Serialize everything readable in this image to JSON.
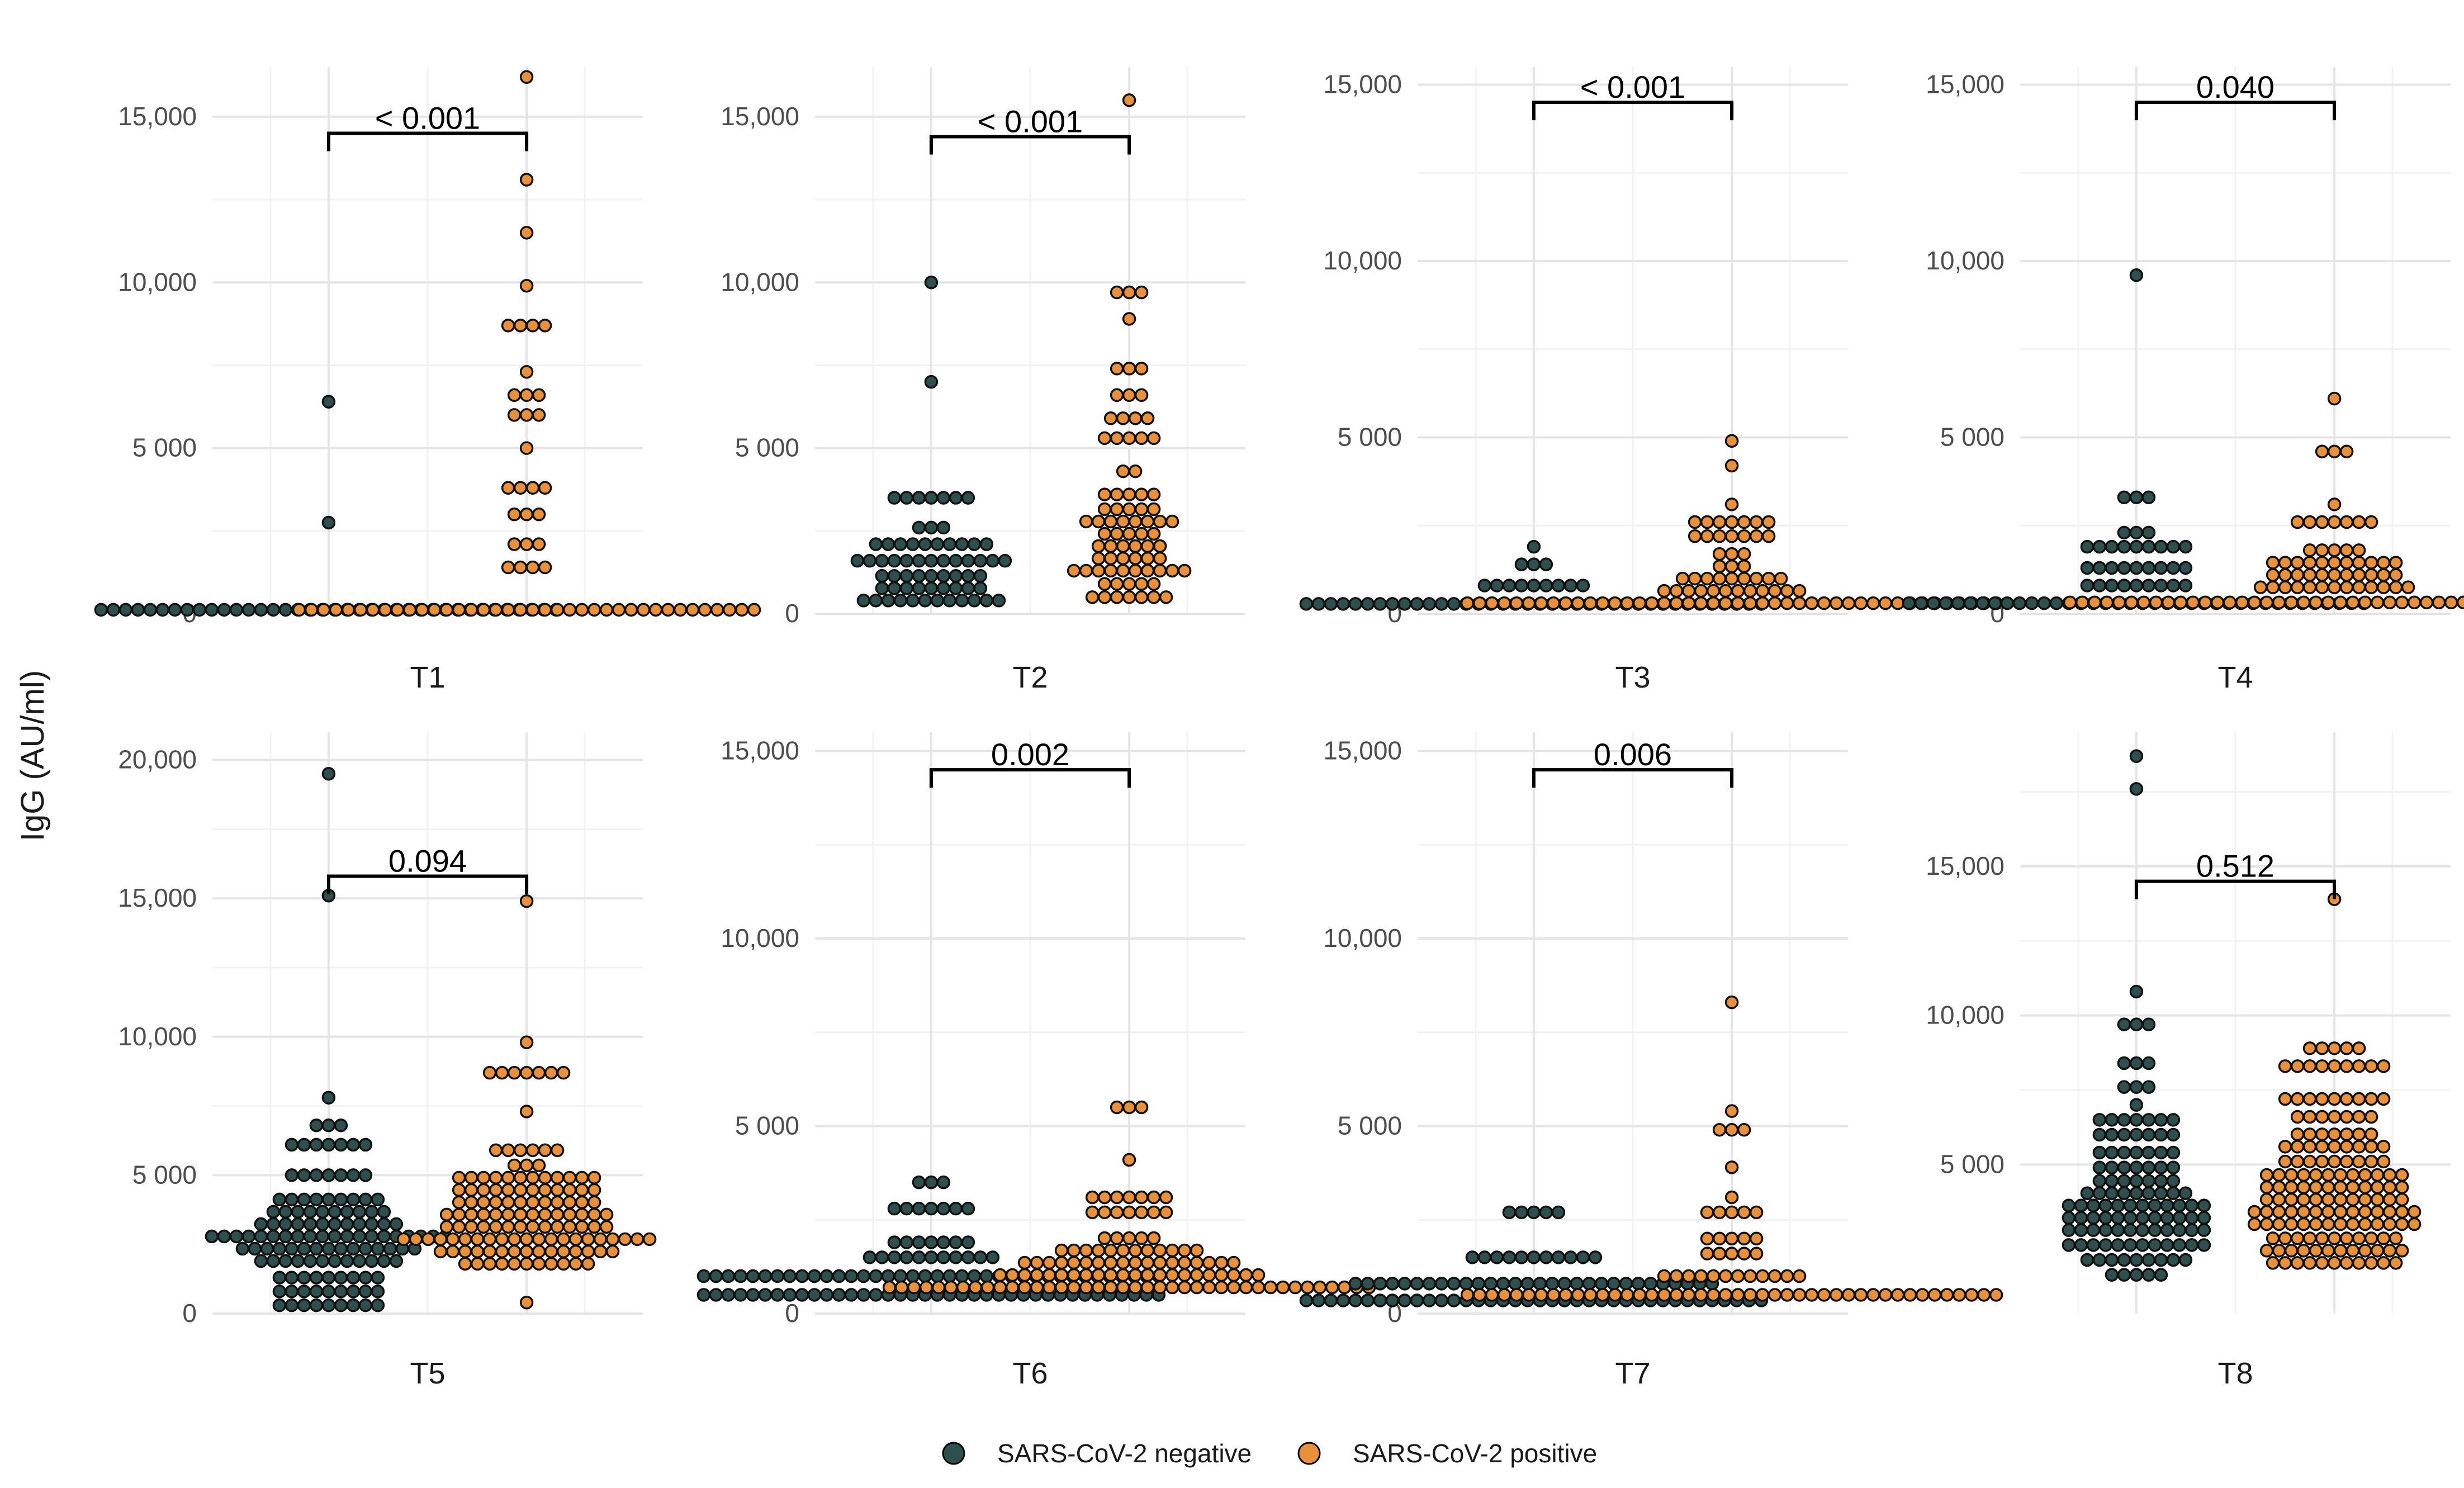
{
  "chart_data": {
    "type": "scatter",
    "subtype": "beeswarm dot plot, faceted",
    "ylabel": "IgG (AU/ml)",
    "legend": {
      "position": "bottom",
      "entries": [
        {
          "name": "SARS-CoV-2 negative",
          "color": "#2f4f4f"
        },
        {
          "name": "SARS-CoV-2 positive",
          "color": "#e8913a"
        }
      ]
    },
    "panels": [
      {
        "label": "T1",
        "ylim": [
          0,
          16500
        ],
        "ticks": [
          0,
          5000,
          10000,
          15000
        ],
        "tick_labels": [
          "0",
          "5 000",
          "10,000",
          "15,000"
        ],
        "p_value": "< 0.001",
        "bracket_y": 14500,
        "groups": [
          {
            "name": "SARS-CoV-2 negative",
            "levels": [
              [
                6400,
                1
              ],
              [
                2750,
                1
              ],
              [
                120,
                38
              ]
            ]
          },
          {
            "name": "SARS-CoV-2 positive",
            "levels": [
              [
                16200,
                1
              ],
              [
                13100,
                1
              ],
              [
                11500,
                1
              ],
              [
                9900,
                1
              ],
              [
                8700,
                4
              ],
              [
                7300,
                1
              ],
              [
                6600,
                3
              ],
              [
                6000,
                3
              ],
              [
                5000,
                1
              ],
              [
                3800,
                4
              ],
              [
                3000,
                3
              ],
              [
                2100,
                3
              ],
              [
                1400,
                4
              ],
              [
                120,
                38
              ]
            ]
          }
        ]
      },
      {
        "label": "T2",
        "ylim": [
          0,
          16500
        ],
        "ticks": [
          0,
          5000,
          10000,
          15000
        ],
        "tick_labels": [
          "0",
          "5 000",
          "10,000",
          "15,000"
        ],
        "p_value": "< 0.001",
        "bracket_y": 14400,
        "groups": [
          {
            "name": "SARS-CoV-2 negative",
            "levels": [
              [
                10000,
                1
              ],
              [
                7000,
                1
              ],
              [
                3500,
                7
              ],
              [
                2600,
                3
              ],
              [
                2100,
                10
              ],
              [
                1600,
                13
              ],
              [
                1100,
                9
              ],
              [
                650,
                9
              ],
              [
                400,
                12
              ]
            ]
          },
          {
            "name": "SARS-CoV-2 positive",
            "levels": [
              [
                15500,
                1
              ],
              [
                9700,
                3
              ],
              [
                8900,
                1
              ],
              [
                7400,
                3
              ],
              [
                6600,
                3
              ],
              [
                5900,
                4
              ],
              [
                5300,
                5
              ],
              [
                4300,
                2
              ],
              [
                3600,
                5
              ],
              [
                3100,
                5
              ],
              [
                2600,
                8
              ],
              [
                2300,
                5
              ],
              [
                1900,
                6
              ],
              [
                1600,
                6
              ],
              [
                1300,
                10
              ],
              [
                900,
                5
              ],
              [
                500,
                7
              ]
            ]
          }
        ]
      },
      {
        "label": "T3",
        "ylim": [
          0,
          15500
        ],
        "ticks": [
          0,
          5000,
          10000,
          15000
        ],
        "tick_labels": [
          "0",
          "5 000",
          "10,000",
          "15,000"
        ],
        "p_value": "< 0.001",
        "bracket_y": 14500,
        "groups": [
          {
            "name": "SARS-CoV-2 negative",
            "levels": [
              [
                1900,
                1
              ],
              [
                1400,
                3
              ],
              [
                800,
                9
              ],
              [
                280,
                38
              ]
            ]
          },
          {
            "name": "SARS-CoV-2 positive",
            "levels": [
              [
                4900,
                1
              ],
              [
                4200,
                1
              ],
              [
                3100,
                1
              ],
              [
                2600,
                7
              ],
              [
                2200,
                7
              ],
              [
                1600,
                3
              ],
              [
                1000,
                3
              ],
              [
                850,
                9
              ],
              [
                520,
                12
              ],
              [
                300,
                44
              ]
            ]
          }
        ]
      },
      {
        "label": "T4",
        "ylim": [
          0,
          15500
        ],
        "ticks": [
          0,
          5000,
          10000,
          15000
        ],
        "tick_labels": [
          "0",
          "5 000",
          "10,000",
          "15,000"
        ],
        "p_value": "0.040",
        "bracket_y": 14500,
        "groups": [
          {
            "name": "SARS-CoV-2 negative",
            "levels": [
              [
                9600,
                1
              ],
              [
                3300,
                3
              ],
              [
                2300,
                3
              ],
              [
                1900,
                9
              ],
              [
                1300,
                9
              ],
              [
                800,
                9
              ],
              [
                300,
                38
              ]
            ]
          },
          {
            "name": "SARS-CoV-2 positive",
            "levels": [
              [
                6100,
                1
              ],
              [
                4600,
                3
              ],
              [
                3100,
                1
              ],
              [
                2600,
                7
              ],
              [
                1800,
                5
              ],
              [
                1400,
                11
              ],
              [
                1100,
                11
              ],
              [
                750,
                13
              ],
              [
                320,
                44
              ]
            ]
          }
        ]
      },
      {
        "label": "T5",
        "ylim": [
          0,
          21000
        ],
        "ticks": [
          0,
          5000,
          10000,
          15000,
          20000
        ],
        "tick_labels": [
          "0",
          "5 000",
          "10,000",
          "15,000",
          "20,000"
        ],
        "p_value": "0.094",
        "bracket_y": 15800,
        "groups": [
          {
            "name": "SARS-CoV-2 negative",
            "levels": [
              [
                19500,
                1
              ],
              [
                15100,
                1
              ],
              [
                7800,
                1
              ],
              [
                6800,
                3
              ],
              [
                6100,
                7
              ],
              [
                5000,
                7
              ],
              [
                4000,
                9
              ],
              [
                3500,
                10
              ],
              [
                3100,
                12
              ],
              [
                2700,
                20
              ],
              [
                2300,
                15
              ],
              [
                1900,
                12
              ],
              [
                1300,
                9
              ],
              [
                800,
                9
              ],
              [
                300,
                9
              ]
            ]
          },
          {
            "name": "SARS-CoV-2 positive",
            "levels": [
              [
                14900,
                1
              ],
              [
                9800,
                1
              ],
              [
                8700,
                7
              ],
              [
                7300,
                1
              ],
              [
                5900,
                6
              ],
              [
                5100,
                3
              ],
              [
                4700,
                12
              ],
              [
                4300,
                12
              ],
              [
                3700,
                12
              ],
              [
                3200,
                14
              ],
              [
                2800,
                14
              ],
              [
                2500,
                21
              ],
              [
                2100,
                15
              ],
              [
                1800,
                11
              ],
              [
                400,
                1
              ]
            ]
          }
        ]
      },
      {
        "label": "T6",
        "ylim": [
          0,
          15500
        ],
        "ticks": [
          0,
          5000,
          10000,
          15000
        ],
        "tick_labels": [
          "0",
          "5 000",
          "10,000",
          "15,000"
        ],
        "p_value": "0.002",
        "bracket_y": 14500,
        "groups": [
          {
            "name": "SARS-CoV-2 negative",
            "levels": [
              [
                3500,
                3
              ],
              [
                2800,
                7
              ],
              [
                1900,
                7
              ],
              [
                1500,
                11
              ],
              [
                1000,
                38
              ],
              [
                500,
                38
              ]
            ]
          },
          {
            "name": "SARS-CoV-2 positive",
            "levels": [
              [
                5500,
                3
              ],
              [
                4100,
                1
              ],
              [
                3100,
                7
              ],
              [
                2700,
                7
              ],
              [
                2000,
                5
              ],
              [
                1600,
                12
              ],
              [
                1300,
                18
              ],
              [
                1000,
                22
              ],
              [
                700,
                40
              ]
            ]
          }
        ]
      },
      {
        "label": "T7",
        "ylim": [
          0,
          15500
        ],
        "ticks": [
          0,
          5000,
          10000,
          15000
        ],
        "tick_labels": [
          "0",
          "5 000",
          "10,000",
          "15,000"
        ],
        "p_value": "0.006",
        "bracket_y": 14500,
        "groups": [
          {
            "name": "SARS-CoV-2 negative",
            "levels": [
              [
                2700,
                5
              ],
              [
                1500,
                11
              ],
              [
                800,
                30
              ],
              [
                350,
                38
              ]
            ]
          },
          {
            "name": "SARS-CoV-2 positive",
            "levels": [
              [
                8300,
                1
              ],
              [
                5400,
                1
              ],
              [
                4900,
                3
              ],
              [
                3900,
                1
              ],
              [
                3100,
                1
              ],
              [
                2700,
                5
              ],
              [
                2000,
                5
              ],
              [
                1600,
                5
              ],
              [
                1000,
                12
              ],
              [
                500,
                44
              ]
            ]
          }
        ]
      },
      {
        "label": "T8",
        "ylim": [
          0,
          19500
        ],
        "ticks": [
          5000,
          10000,
          15000
        ],
        "tick_labels": [
          "5 000",
          "10,000",
          "15,000"
        ],
        "p_value": "0.512",
        "bracket_y": 14500,
        "groups": [
          {
            "name": "SARS-CoV-2 negative",
            "levels": [
              [
                18700,
                1
              ],
              [
                17600,
                1
              ],
              [
                10800,
                1
              ],
              [
                9700,
                3
              ],
              [
                8400,
                3
              ],
              [
                7600,
                3
              ],
              [
                7000,
                1
              ],
              [
                6500,
                7
              ],
              [
                6000,
                7
              ],
              [
                5400,
                7
              ],
              [
                4900,
                7
              ],
              [
                4400,
                7
              ],
              [
                4000,
                9
              ],
              [
                3500,
                12
              ],
              [
                3200,
                12
              ],
              [
                2800,
                12
              ],
              [
                2300,
                12
              ],
              [
                1800,
                9
              ],
              [
                1300,
                5
              ]
            ]
          },
          {
            "name": "SARS-CoV-2 positive",
            "levels": [
              [
                13900,
                1
              ],
              [
                8900,
                5
              ],
              [
                8300,
                9
              ],
              [
                7200,
                9
              ],
              [
                6600,
                7
              ],
              [
                6000,
                7
              ],
              [
                5600,
                9
              ],
              [
                5100,
                9
              ],
              [
                4600,
                12
              ],
              [
                4200,
                12
              ],
              [
                3800,
                12
              ],
              [
                3300,
                14
              ],
              [
                3000,
                14
              ],
              [
                2500,
                11
              ],
              [
                2100,
                12
              ],
              [
                1700,
                11
              ]
            ]
          }
        ]
      }
    ]
  }
}
